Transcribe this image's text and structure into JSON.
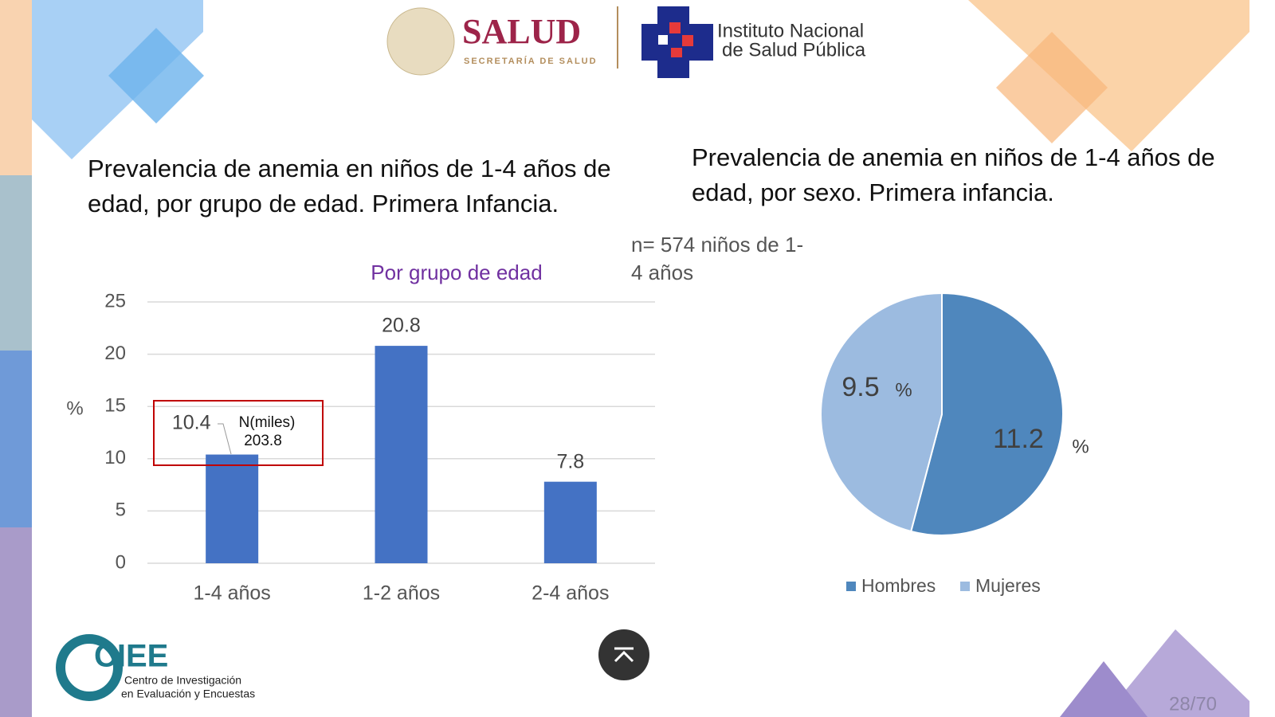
{
  "header": {
    "brand": "SALUD",
    "brand_sub": "SECRETARÍA DE SALUD",
    "institute": [
      "Instituto Nacional",
      "de Salud Pública"
    ]
  },
  "chart_data": [
    {
      "type": "bar",
      "title": "Prevalencia de anemia en niños de 1-4 años de edad, por grupo de edad. Primera Infancia.",
      "subtitle": "Por grupo de edad",
      "y_label": "%",
      "categories": [
        "1-4 años",
        "1-2 años",
        "2-4 años"
      ],
      "values": [
        10.4,
        20.8,
        7.8
      ],
      "color": "#4472c4",
      "ylim": [
        0,
        25
      ],
      "yticks": [
        0,
        5,
        10,
        15,
        20,
        25
      ],
      "grid": true,
      "annotation": {
        "text": "N(miles)",
        "value": 203.8
      }
    },
    {
      "type": "pie",
      "title": "Prevalencia de anemia en niños de 1-4 años de edad, por sexo. Primera infancia.",
      "subtitle": "n= 574 niños de 1-4 años",
      "unit": "%",
      "categories": [
        "Hombres",
        "Mujeres"
      ],
      "values": [
        11.2,
        9.5
      ],
      "colors": [
        "#4f87bd",
        "#9cbbe0"
      ],
      "legend": "bottom"
    }
  ],
  "footer": {
    "logo": "CIEE",
    "center": [
      "Centro de Investigación",
      "en Evaluación y Encuestas"
    ],
    "page": "28/70"
  }
}
